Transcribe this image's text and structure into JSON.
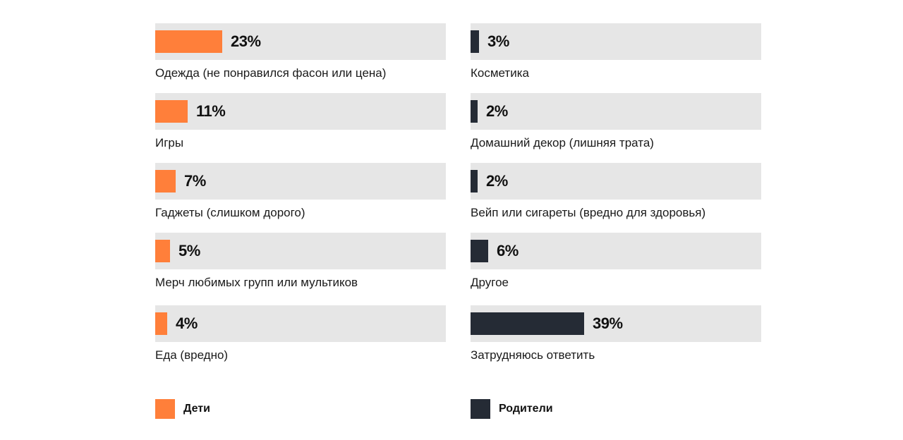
{
  "colors": {
    "kids": "#ff7f3a",
    "parents": "#252b35",
    "track": "#e6e6e6"
  },
  "legend": {
    "kids": "Дети",
    "parents": "Родители"
  },
  "chart_data": [
    {
      "type": "bar",
      "orientation": "horizontal",
      "series_name": "Дети",
      "categories": [
        "Одежда (не понравился фасон или цена)",
        "Игры",
        "Гаджеты (слишком дорого)",
        "Мерч любимых групп или мультиков",
        "Еда (вредно)"
      ],
      "values": [
        23,
        11,
        7,
        5,
        4
      ],
      "value_labels": [
        "23%",
        "11%",
        "7%",
        "5%",
        "4%"
      ],
      "unit": "%"
    },
    {
      "type": "bar",
      "orientation": "horizontal",
      "series_name": "Родители",
      "categories": [
        "Косметика",
        "Домашний декор (лишняя трата)",
        "Вейп или сигареты (вредно для здоровья)",
        "Другое",
        "Затрудняюсь ответить"
      ],
      "values": [
        3,
        2,
        2,
        6,
        39
      ],
      "value_labels": [
        "3%",
        "2%",
        "2%",
        "6%",
        "39%"
      ],
      "unit": "%"
    }
  ]
}
